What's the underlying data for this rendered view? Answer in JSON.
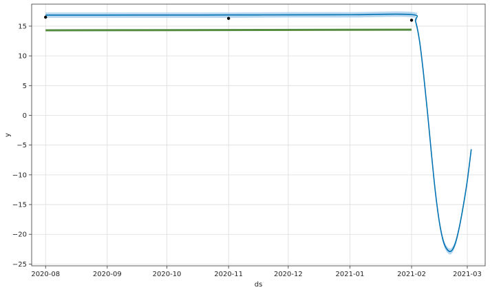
{
  "chart_data": {
    "type": "line",
    "xlabel": "ds",
    "ylabel": "y",
    "x_range": [
      "2020-07-25",
      "2021-03-10"
    ],
    "ylim": [
      -25.3,
      18.7
    ],
    "grid": true,
    "x_ticks": [
      "2020-08",
      "2020-09",
      "2020-10",
      "2020-11",
      "2020-12",
      "2021-01",
      "2021-02",
      "2021-03"
    ],
    "y_ticks": [
      15,
      10,
      5,
      0,
      -5,
      -10,
      -15,
      -20,
      -25
    ],
    "y_tick_labels": [
      "15",
      "10",
      "5",
      "0",
      "−5",
      "−10",
      "−15",
      "−20",
      "−25"
    ],
    "colors": {
      "forecast": "#0072B2",
      "interval": "#9ECAE9",
      "trend": "#548B3F",
      "observed": "#000000",
      "grid": "#dddddd",
      "axes": "#333333"
    },
    "observed_points": [
      {
        "x": "2020-08-01",
        "y": 16.5
      },
      {
        "x": "2020-11-01",
        "y": 16.3
      },
      {
        "x": "2021-02-01",
        "y": 16.0
      }
    ],
    "forecast": [
      {
        "x": "2020-08-01",
        "y": 16.85,
        "lower": 16.4,
        "upper": 17.3
      },
      {
        "x": "2020-09-01",
        "y": 16.86,
        "lower": 16.4,
        "upper": 17.3
      },
      {
        "x": "2020-10-01",
        "y": 16.87,
        "lower": 16.4,
        "upper": 17.3
      },
      {
        "x": "2020-11-01",
        "y": 16.88,
        "lower": 16.4,
        "upper": 17.3
      },
      {
        "x": "2020-12-01",
        "y": 16.9,
        "lower": 16.45,
        "upper": 17.35
      },
      {
        "x": "2021-01-01",
        "y": 16.92,
        "lower": 16.45,
        "upper": 17.35
      },
      {
        "x": "2021-02-01",
        "y": 16.95,
        "lower": 16.5,
        "upper": 17.4
      },
      {
        "x": "2021-02-03",
        "y": 15.8,
        "lower": 15.3,
        "upper": 16.3
      },
      {
        "x": "2021-02-05",
        "y": 12.5,
        "lower": 12.0,
        "upper": 13.0
      },
      {
        "x": "2021-02-07",
        "y": 7.0,
        "lower": 6.5,
        "upper": 7.5
      },
      {
        "x": "2021-02-09",
        "y": 0.5,
        "lower": 0.0,
        "upper": 1.0
      },
      {
        "x": "2021-02-11",
        "y": -6.5,
        "lower": -7.0,
        "upper": -6.0
      },
      {
        "x": "2021-02-13",
        "y": -13.0,
        "lower": -13.5,
        "upper": -12.5
      },
      {
        "x": "2021-02-15",
        "y": -18.0,
        "lower": -18.5,
        "upper": -17.5
      },
      {
        "x": "2021-02-17",
        "y": -21.2,
        "lower": -21.7,
        "upper": -20.7
      },
      {
        "x": "2021-02-19",
        "y": -22.6,
        "lower": -23.1,
        "upper": -22.1
      },
      {
        "x": "2021-02-21",
        "y": -22.8,
        "lower": -23.3,
        "upper": -22.3
      },
      {
        "x": "2021-02-23",
        "y": -21.5,
        "lower": -22.0,
        "upper": -21.0
      },
      {
        "x": "2021-02-25",
        "y": -18.8,
        "lower": -19.3,
        "upper": -18.3
      },
      {
        "x": "2021-02-27",
        "y": -15.2,
        "lower": -15.7,
        "upper": -14.7
      },
      {
        "x": "2021-03-01",
        "y": -11.0,
        "lower": -11.5,
        "upper": -10.5
      },
      {
        "x": "2021-03-03",
        "y": -5.7,
        "lower": -6.2,
        "upper": -5.2
      }
    ],
    "trend": [
      {
        "x": "2020-08-01",
        "y": 14.3
      },
      {
        "x": "2021-02-01",
        "y": 14.4
      }
    ]
  }
}
